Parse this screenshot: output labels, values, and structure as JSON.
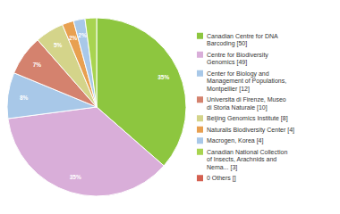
{
  "chart_data": {
    "type": "pie",
    "categories": [
      "Canadian Centre for DNA\nBarcoding [50]",
      "Centre for Biodiversity\nGenomics [49]",
      "Center for Biology and\nManagement of Populations,\nMontpellier [12]",
      "Universita di Firenze, Museo\ndi Storia Naturale [10]",
      "Beijing Genomics Institute [8]",
      "Naturalis Biodiversity Center [4]",
      "Macrogen, Korea [4]",
      "Canadian National Collection\nof Insects, Arachnids and\nNema... [3]",
      "0 Others []"
    ],
    "values": [
      35,
      35,
      8,
      7,
      5,
      2,
      2,
      2,
      0
    ],
    "value_labels": [
      "35%",
      "35%",
      "8%",
      "7%",
      "5%",
      "2%",
      "2%",
      null,
      null
    ],
    "colors": [
      "#8dc63f",
      "#d9aed9",
      "#a8c8e8",
      "#d4826e",
      "#d4d48a",
      "#e8a050",
      "#a8c8e8",
      "#a8d450",
      "#d46050"
    ],
    "data_labels": true,
    "legend": "right"
  }
}
